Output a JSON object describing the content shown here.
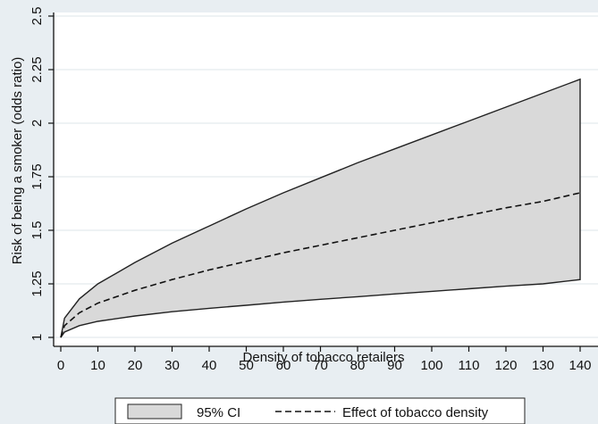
{
  "chart_data": {
    "type": "area",
    "xlabel": "Density of tobacco retailers",
    "ylabel": "Risk of being a smoker (odds ratio)",
    "xlim": [
      0,
      140
    ],
    "ylim": [
      1,
      2.5
    ],
    "x_ticks": [
      0,
      10,
      20,
      30,
      40,
      50,
      60,
      70,
      80,
      90,
      100,
      110,
      120,
      130,
      140
    ],
    "y_ticks": [
      1,
      1.25,
      1.5,
      1.75,
      2,
      2.25,
      2.5
    ],
    "y_tick_labels": [
      "1",
      "1.25",
      "1.5",
      "1.75",
      "2",
      "2.25",
      "2.5"
    ],
    "grid": "horizontal",
    "legend_position": "bottom",
    "x": [
      0,
      1,
      5,
      10,
      20,
      30,
      40,
      50,
      60,
      70,
      80,
      90,
      100,
      110,
      120,
      130,
      140
    ],
    "series": [
      {
        "name": "95% CI",
        "style": "band",
        "color": "#d9d9d9",
        "lower": [
          1.0,
          1.025,
          1.055,
          1.075,
          1.1,
          1.12,
          1.136,
          1.15,
          1.165,
          1.178,
          1.19,
          1.203,
          1.215,
          1.227,
          1.239,
          1.25,
          1.27
        ],
        "upper": [
          1.0,
          1.09,
          1.18,
          1.25,
          1.35,
          1.44,
          1.52,
          1.6,
          1.675,
          1.745,
          1.815,
          1.88,
          1.945,
          2.01,
          2.075,
          2.14,
          2.205
        ]
      },
      {
        "name": "Effect of tobacco density",
        "style": "dashed",
        "color": "#111111",
        "values": [
          1.0,
          1.055,
          1.115,
          1.16,
          1.22,
          1.27,
          1.315,
          1.355,
          1.395,
          1.43,
          1.465,
          1.5,
          1.535,
          1.57,
          1.605,
          1.635,
          1.675
        ]
      }
    ]
  }
}
